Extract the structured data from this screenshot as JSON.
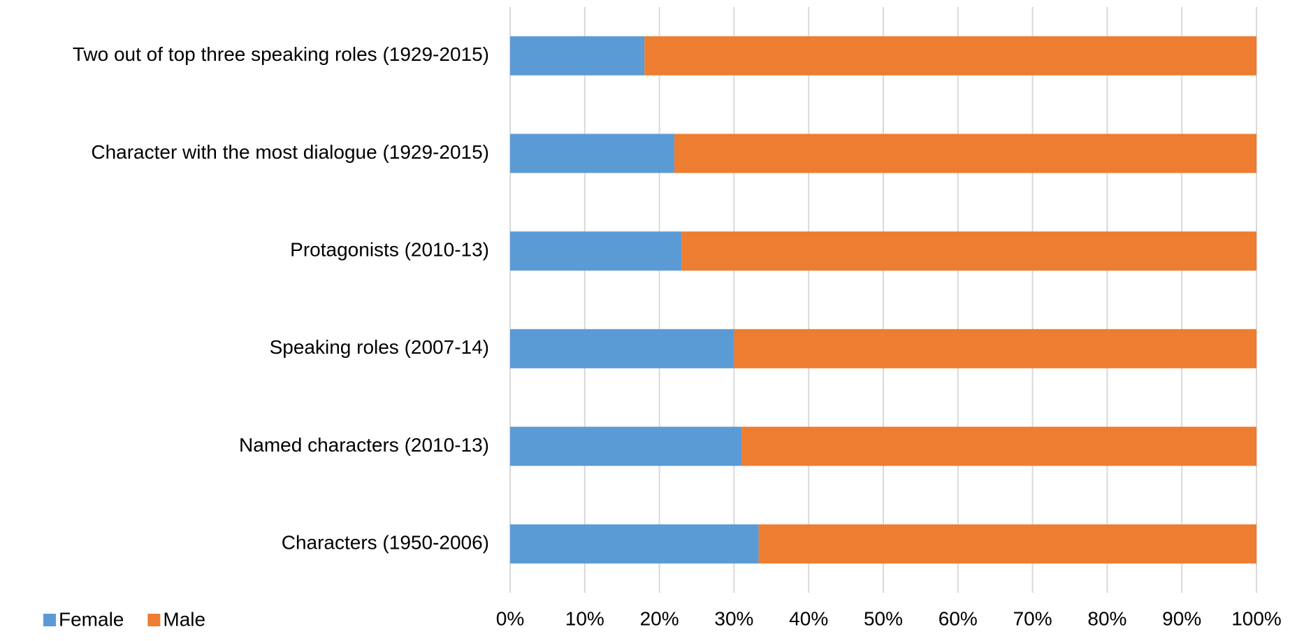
{
  "chart_data": {
    "type": "stacked-bar-horizontal",
    "categories": [
      "Two out of top three speaking roles (1929-2015)",
      "Character with the most dialogue (1929-2015)",
      "Protagonists (2010-13)",
      "Speaking roles (2007-14)",
      "Named characters (2010-13)",
      "Characters (1950-2006)"
    ],
    "series": [
      {
        "name": "Female",
        "color": "#5b9bd5",
        "values": [
          18,
          22,
          23,
          30,
          31,
          33.3
        ]
      },
      {
        "name": "Male",
        "color": "#ed7d31",
        "values": [
          82,
          78,
          77,
          70,
          69,
          66.7
        ]
      }
    ],
    "xlim": [
      0,
      100
    ],
    "xticks": [
      {
        "value": 0,
        "label": "0%"
      },
      {
        "value": 10,
        "label": "10%"
      },
      {
        "value": 20,
        "label": "20%"
      },
      {
        "value": 30,
        "label": "30%"
      },
      {
        "value": 40,
        "label": "40%"
      },
      {
        "value": 50,
        "label": "50%"
      },
      {
        "value": 60,
        "label": "60%"
      },
      {
        "value": 70,
        "label": "70%"
      },
      {
        "value": 80,
        "label": "80%"
      },
      {
        "value": 90,
        "label": "90%"
      },
      {
        "value": 100,
        "label": "100%"
      }
    ],
    "grid": true,
    "legend": "bottom-left"
  }
}
